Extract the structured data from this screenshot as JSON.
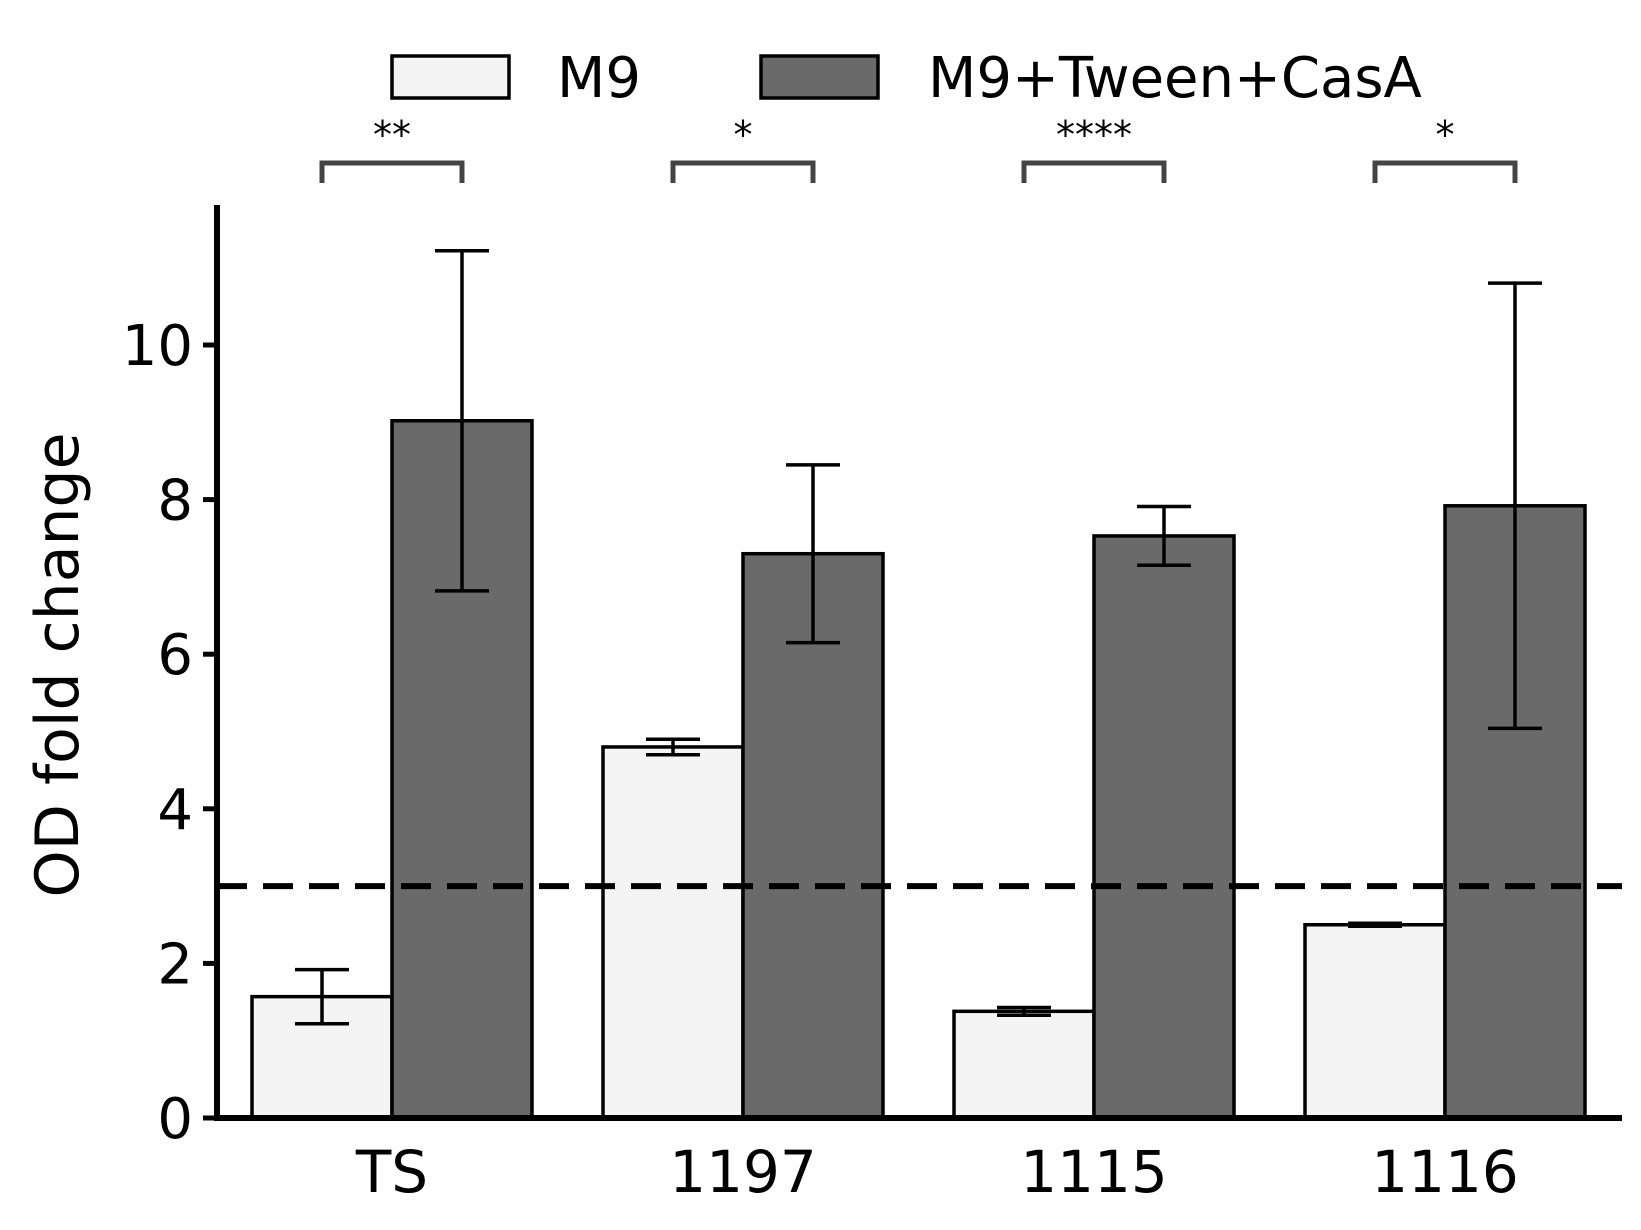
{
  "chart_data": {
    "type": "bar",
    "categories": [
      "TS",
      "1197",
      "1115",
      "1116"
    ],
    "series": [
      {
        "name": "M9",
        "values": [
          1.57,
          4.8,
          1.38,
          2.5
        ],
        "errors": [
          0.35,
          0.1,
          0.05,
          0.02
        ],
        "color": "#f4f4f4"
      },
      {
        "name": "M9+Tween+CasA",
        "values": [
          9.02,
          7.3,
          7.53,
          7.92
        ],
        "errors": [
          2.2,
          1.15,
          0.38,
          2.88
        ],
        "color": "#6a6a6a"
      }
    ],
    "significance": [
      "**",
      "*",
      "****",
      "*"
    ],
    "ylabel": "OD fold change",
    "xlabel": "",
    "ylim": [
      0,
      11.8
    ],
    "yticks": [
      0,
      2,
      4,
      6,
      8,
      10
    ],
    "threshold": 3,
    "legend_position": "top-center",
    "grid": false
  }
}
